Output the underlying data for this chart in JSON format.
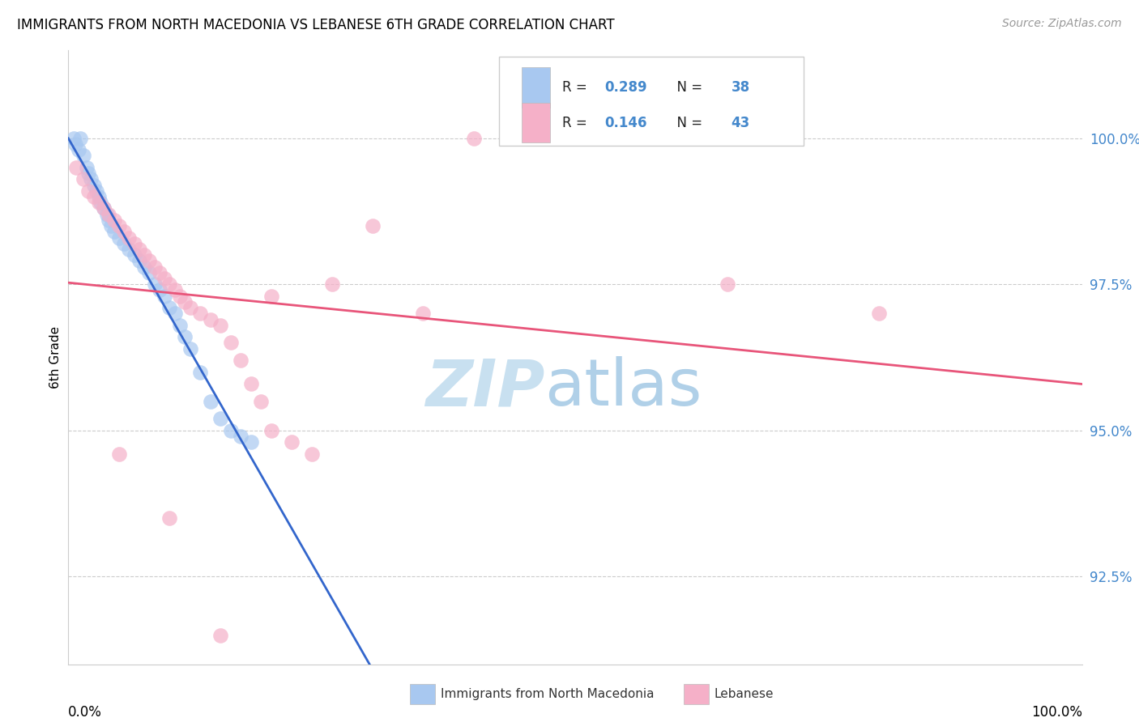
{
  "title": "IMMIGRANTS FROM NORTH MACEDONIA VS LEBANESE 6TH GRADE CORRELATION CHART",
  "source": "Source: ZipAtlas.com",
  "ylabel": "6th Grade",
  "y_ticks": [
    92.5,
    95.0,
    97.5,
    100.0
  ],
  "xlim": [
    0.0,
    100.0
  ],
  "ylim": [
    91.0,
    101.5
  ],
  "legend1_label": "Immigrants from North Macedonia",
  "legend2_label": "Lebanese",
  "R1": "0.289",
  "N1": "38",
  "R2": "0.146",
  "N2": "43",
  "color1": "#a8c8f0",
  "color2": "#f5b0c8",
  "trendline1_color": "#3366cc",
  "trendline2_color": "#e8557a",
  "watermark_zip_color": "#c8e0f0",
  "watermark_atlas_color": "#b0d0e8",
  "blue_x": [
    0.5,
    0.7,
    1.0,
    1.2,
    1.5,
    1.8,
    2.0,
    2.2,
    2.5,
    2.8,
    3.0,
    3.2,
    3.5,
    3.8,
    4.0,
    4.2,
    4.5,
    5.0,
    5.5,
    6.0,
    6.5,
    7.0,
    7.5,
    8.0,
    8.5,
    9.0,
    9.5,
    10.0,
    10.5,
    11.0,
    11.5,
    12.0,
    13.0,
    14.0,
    15.0,
    16.0,
    17.0,
    18.0
  ],
  "blue_y": [
    100.0,
    99.9,
    99.8,
    100.0,
    99.7,
    99.5,
    99.4,
    99.3,
    99.2,
    99.1,
    99.0,
    98.9,
    98.8,
    98.7,
    98.6,
    98.5,
    98.4,
    98.3,
    98.2,
    98.1,
    98.0,
    97.9,
    97.8,
    97.7,
    97.5,
    97.4,
    97.3,
    97.1,
    97.0,
    96.8,
    96.6,
    96.4,
    96.0,
    95.5,
    95.2,
    95.0,
    94.9,
    94.8
  ],
  "pink_x": [
    0.8,
    1.5,
    2.0,
    2.5,
    3.0,
    3.5,
    4.0,
    4.5,
    5.0,
    5.5,
    6.0,
    6.5,
    7.0,
    7.5,
    8.0,
    8.5,
    9.0,
    9.5,
    10.0,
    10.5,
    11.0,
    11.5,
    12.0,
    13.0,
    14.0,
    15.0,
    16.0,
    17.0,
    18.0,
    19.0,
    20.0,
    22.0,
    24.0,
    26.0,
    30.0,
    35.0,
    40.0,
    65.0,
    80.0,
    5.0,
    10.0,
    15.0,
    20.0
  ],
  "pink_y": [
    99.5,
    99.3,
    99.1,
    99.0,
    98.9,
    98.8,
    98.7,
    98.6,
    98.5,
    98.4,
    98.3,
    98.2,
    98.1,
    98.0,
    97.9,
    97.8,
    97.7,
    97.6,
    97.5,
    97.4,
    97.3,
    97.2,
    97.1,
    97.0,
    96.9,
    96.8,
    96.5,
    96.2,
    95.8,
    95.5,
    95.0,
    94.8,
    94.6,
    97.5,
    98.5,
    97.0,
    100.0,
    97.5,
    97.0,
    94.6,
    93.5,
    91.5,
    97.3
  ]
}
